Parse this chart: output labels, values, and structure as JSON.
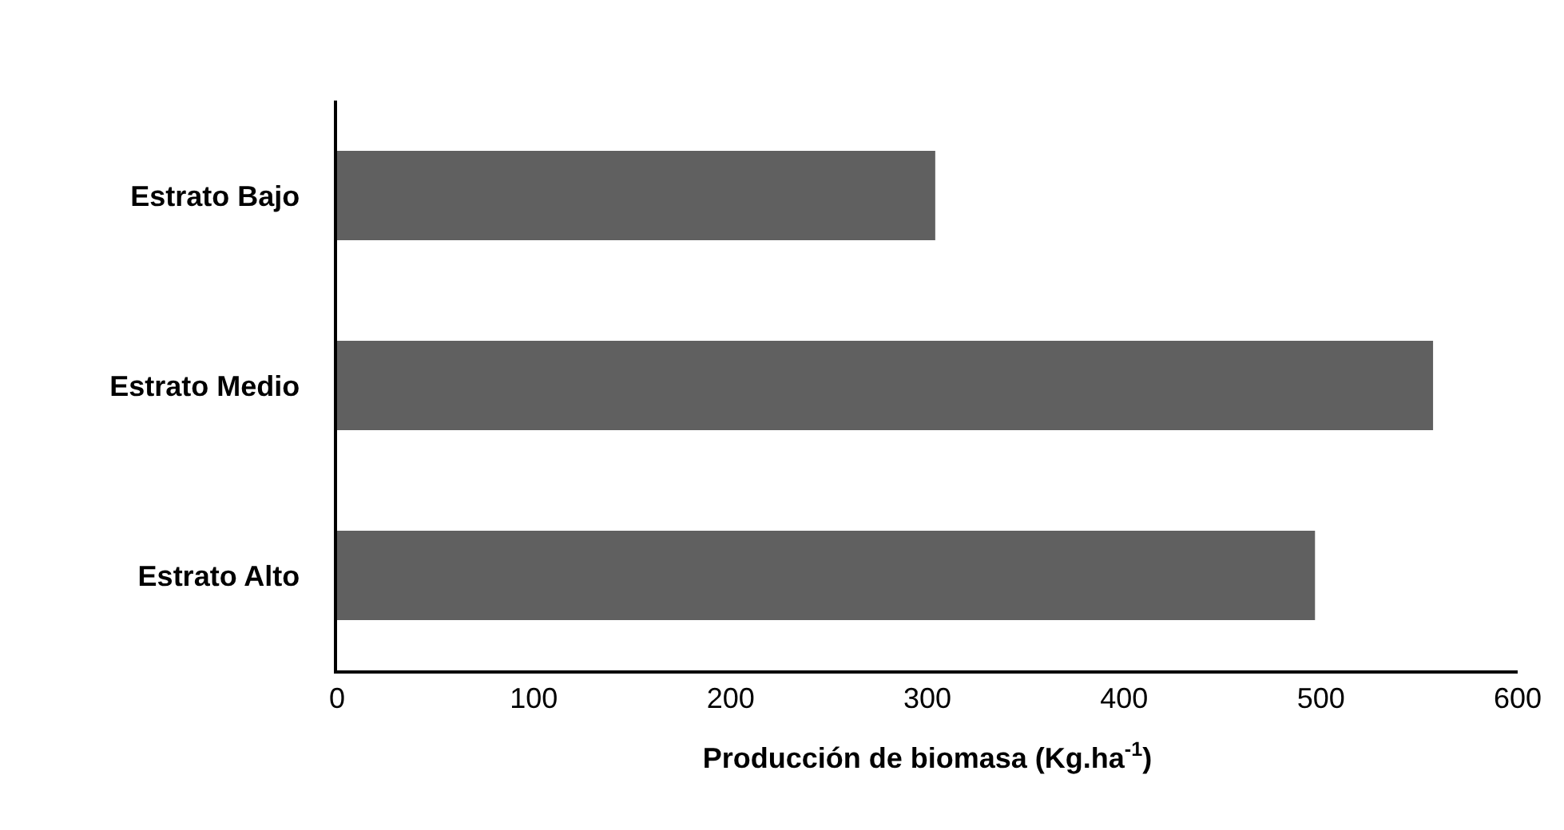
{
  "chart_data": {
    "type": "bar",
    "orientation": "horizontal",
    "categories": [
      "Estrato Bajo",
      "Estrato Medio",
      "Estrato Alto"
    ],
    "values": [
      304,
      557,
      497
    ],
    "color": "#606060",
    "xlabel": "Producción de biomasa (Kg.ha$^{-1}$)",
    "xlim": [
      0,
      600
    ],
    "xticks": [
      0,
      100,
      200,
      300,
      400,
      500,
      600
    ],
    "legend": false
  }
}
